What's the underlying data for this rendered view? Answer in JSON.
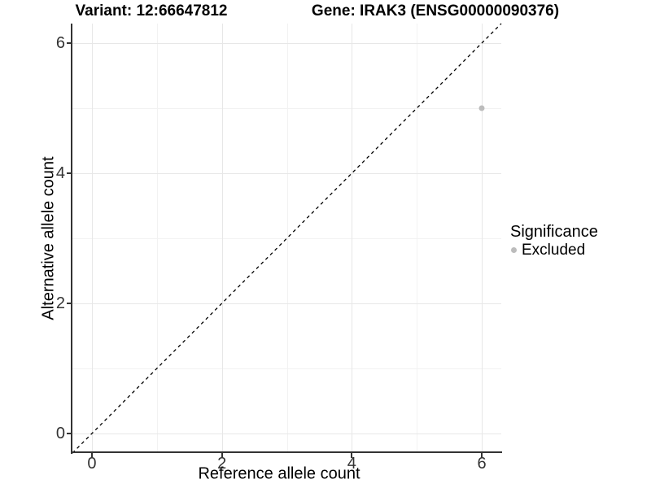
{
  "chart_data": {
    "type": "scatter",
    "titles": {
      "left": "Variant: 12:66647812",
      "right": "Gene: IRAK3 (ENSG00000090376)"
    },
    "xlabel": "Reference allele count",
    "ylabel": "Alternative allele count",
    "xlim": [
      -0.3,
      6.3
    ],
    "ylim": [
      -0.3,
      6.3
    ],
    "x_ticks": [
      0,
      2,
      4,
      6
    ],
    "y_ticks": [
      0,
      2,
      4,
      6
    ],
    "x_minor_gridlines": [
      1,
      3,
      5
    ],
    "y_minor_gridlines": [
      1,
      3,
      5
    ],
    "grid": true,
    "legend_position": "right",
    "series": [
      {
        "name": "Excluded",
        "color": "#bcbcbc",
        "points": [
          {
            "x": 6,
            "y": 5
          }
        ]
      }
    ],
    "reference_line": {
      "shape": "identity",
      "style": "dashed",
      "color": "#000000",
      "from": [
        -0.3,
        -0.3
      ],
      "to": [
        6.3,
        6.3
      ]
    },
    "legend": {
      "title": "Significance",
      "items": [
        {
          "label": "Excluded",
          "color": "#bcbcbc",
          "marker": "circle"
        }
      ]
    },
    "colors": {
      "background": "#ffffff",
      "grid_major": "#e7e7e7",
      "grid_minor": "#f2f2f2",
      "axis_line": "#333333",
      "tick_mark": "#333333",
      "tick_text": "#333333",
      "title_text": "#000000"
    }
  }
}
